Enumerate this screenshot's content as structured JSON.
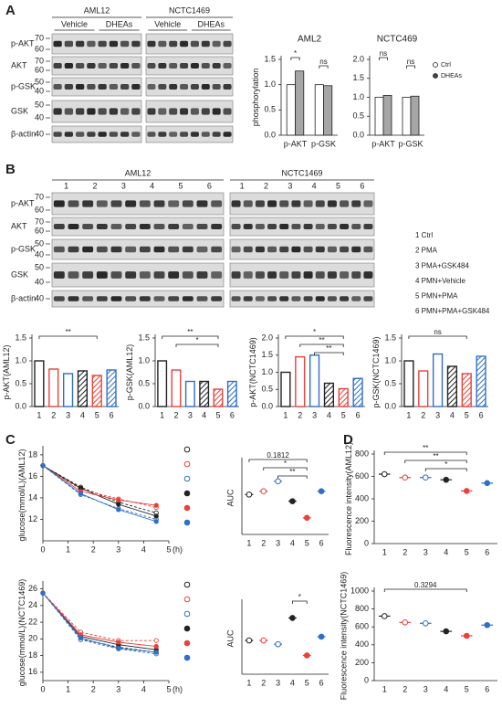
{
  "panel_labels": [
    "A",
    "B",
    "C",
    "D"
  ],
  "blot_a": {
    "groups": [
      "AML12",
      "NCTC1469"
    ],
    "conditions": [
      "Vehicle",
      "DHEAs",
      "Vehicle",
      "DHEAs"
    ],
    "rows": [
      {
        "label": "p-AKT",
        "markers": [
          70,
          60
        ]
      },
      {
        "label": "AKT",
        "markers": [
          70,
          60
        ]
      },
      {
        "label": "p-GSK",
        "markers": [
          50,
          40
        ]
      },
      {
        "label": "GSK",
        "markers": [
          50,
          40
        ]
      },
      {
        "label": "β-actin",
        "markers": [
          40
        ]
      }
    ]
  },
  "blot_b": {
    "groups": [
      "AML12",
      "NCTC1469"
    ],
    "lanes": [
      1,
      2,
      3,
      4,
      5,
      6
    ],
    "rows": [
      {
        "label": "p-AKT",
        "markers": [
          70,
          60
        ]
      },
      {
        "label": "AKT",
        "markers": [
          70,
          60
        ]
      },
      {
        "label": "p-GSK",
        "markers": [
          50,
          40
        ]
      },
      {
        "label": "GSK",
        "markers": [
          50,
          40
        ]
      },
      {
        "label": "β-actin",
        "markers": [
          40
        ]
      }
    ],
    "legend": [
      "1 Ctrl",
      "2 PMA",
      "3 PMA+GSK484",
      "4 PMN+Vehicle",
      "5 PMN+PMA",
      "6 PMN+PMA+GSK484"
    ]
  },
  "chart_data": [
    {
      "type": "bar",
      "title": "AML2",
      "ylabel": "phosphorylation",
      "categories": [
        "p-AKT",
        "p-GSK"
      ],
      "series": [
        {
          "color": "#ffffff",
          "values": [
            1.0,
            1.0
          ]
        },
        {
          "color": "#a6a6a6",
          "values": [
            1.27,
            0.98
          ]
        }
      ],
      "ylim": [
        0,
        1.5
      ],
      "yticks": [
        {
          "value": 0,
          "label": "0.0"
        },
        0.5,
        {
          "value": 1,
          "label": "1.0"
        },
        1.5
      ],
      "annotations": [
        {
          "text": "*",
          "category": "p-AKT"
        },
        {
          "text": "ns",
          "category": "p-GSK"
        }
      ]
    },
    {
      "type": "bar",
      "title": "NCTC469",
      "categories": [
        "p-AKT",
        "p-GSK"
      ],
      "legend": "right",
      "series": [
        {
          "name": "Ctrl",
          "color": "#ffffff",
          "values": [
            1.0,
            1.0
          ]
        },
        {
          "name": "DHEAs",
          "color": "#a6a6a6",
          "values": [
            1.05,
            1.03
          ]
        }
      ],
      "ylim": [
        0,
        2.0
      ],
      "yticks": [
        {
          "value": 0,
          "label": "0.0"
        },
        0.5,
        {
          "value": 1,
          "label": "1.0"
        },
        1.5,
        {
          "value": 2,
          "label": "2.0"
        }
      ],
      "annotations": [
        {
          "text": "ns",
          "category": "p-AKT"
        },
        {
          "text": "ns",
          "category": "p-GSK"
        }
      ]
    },
    {
      "type": "bar",
      "ylabel": "p-AKT(AML12)",
      "categories": [
        "1",
        "2",
        "3",
        "4",
        "5",
        "6"
      ],
      "values": [
        1.0,
        0.82,
        0.72,
        0.78,
        0.68,
        0.8
      ],
      "colors": [
        "#222222",
        "#e8423a",
        "#2f6fc8",
        "#222222",
        "#e8423a",
        "#2f6fc8"
      ],
      "hatched": [
        false,
        false,
        false,
        true,
        true,
        true
      ],
      "ylim": [
        0,
        1.5
      ],
      "yticks": [
        {
          "value": 0,
          "label": "0.0"
        },
        0.5,
        {
          "value": 1,
          "label": "1.0"
        },
        1.5
      ],
      "annotations": [
        {
          "text": "**",
          "between": [
            "1",
            "5"
          ]
        }
      ]
    },
    {
      "type": "bar",
      "ylabel": "p-GSK(AML12)",
      "categories": [
        "1",
        "2",
        "3",
        "4",
        "5",
        "6"
      ],
      "values": [
        1.0,
        0.8,
        0.55,
        0.55,
        0.38,
        0.55
      ],
      "colors": [
        "#222222",
        "#e8423a",
        "#2f6fc8",
        "#222222",
        "#e8423a",
        "#2f6fc8"
      ],
      "hatched": [
        false,
        false,
        false,
        true,
        true,
        true
      ],
      "ylim": [
        0,
        1.5
      ],
      "yticks": [
        {
          "value": 0,
          "label": "0.0"
        },
        0.5,
        {
          "value": 1,
          "label": "1.0"
        },
        1.5
      ],
      "annotations": [
        {
          "text": "**",
          "between": [
            "1",
            "5"
          ]
        },
        {
          "text": "*",
          "between": [
            "2",
            "5"
          ]
        }
      ]
    },
    {
      "type": "bar",
      "ylabel": "p-AKT(NCTC1469)",
      "categories": [
        "1",
        "2",
        "3",
        "4",
        "5",
        "6"
      ],
      "values": [
        1.0,
        1.45,
        1.5,
        0.68,
        0.52,
        0.82
      ],
      "colors": [
        "#222222",
        "#e8423a",
        "#2f6fc8",
        "#222222",
        "#e8423a",
        "#2f6fc8"
      ],
      "hatched": [
        false,
        false,
        false,
        true,
        true,
        true
      ],
      "ylim": [
        0,
        2.0
      ],
      "yticks": [
        {
          "value": 0,
          "label": "0.0"
        },
        0.5,
        {
          "value": 1,
          "label": "1.0"
        },
        1.5,
        {
          "value": 2,
          "label": "2.0"
        }
      ],
      "annotations": [
        {
          "text": "*",
          "between": [
            "1",
            "5"
          ]
        },
        {
          "text": "**",
          "between": [
            "2",
            "5"
          ]
        },
        {
          "text": "**",
          "between": [
            "3",
            "5"
          ]
        }
      ]
    },
    {
      "type": "bar",
      "ylabel": "p-GSK(NCTC1469)",
      "categories": [
        "1",
        "2",
        "3",
        "4",
        "5",
        "6"
      ],
      "values": [
        1.0,
        0.78,
        1.15,
        0.88,
        0.72,
        1.1
      ],
      "colors": [
        "#222222",
        "#e8423a",
        "#2f6fc8",
        "#222222",
        "#e8423a",
        "#2f6fc8"
      ],
      "hatched": [
        false,
        false,
        false,
        true,
        true,
        true
      ],
      "ylim": [
        0,
        1.5
      ],
      "yticks": [
        {
          "value": 0,
          "label": "0.0"
        },
        0.5,
        {
          "value": 1,
          "label": "1.0"
        },
        1.5
      ],
      "annotations": [
        {
          "text": "ns",
          "between": [
            "1",
            "5"
          ]
        }
      ]
    },
    {
      "type": "line",
      "ylabel": "glucose(mmol/L)(AML12)",
      "xlabel": "(h)",
      "legend": "right",
      "x": [
        0,
        1.5,
        3,
        4.5
      ],
      "xlim": [
        0,
        5
      ],
      "xticks": [
        0,
        1,
        2,
        3,
        4,
        5
      ],
      "ylim": [
        10,
        18.5
      ],
      "yticks": [
        12,
        14,
        16,
        18
      ],
      "series": [
        {
          "color": "#222222",
          "filled": false,
          "values": [
            17,
            15.0,
            13.6,
            12.6
          ]
        },
        {
          "color": "#e8423a",
          "filled": false,
          "values": [
            17,
            14.8,
            13.9,
            13.1
          ]
        },
        {
          "color": "#2f6fc8",
          "filled": false,
          "values": [
            17,
            14.3,
            13.0,
            12.0
          ]
        },
        {
          "color": "#222222",
          "filled": true,
          "values": [
            17,
            14.9,
            13.4,
            12.3
          ]
        },
        {
          "color": "#e8423a",
          "filled": true,
          "values": [
            17,
            14.6,
            13.8,
            13.3
          ]
        },
        {
          "color": "#2f6fc8",
          "filled": true,
          "values": [
            17,
            14.4,
            12.9,
            11.8
          ]
        }
      ]
    },
    {
      "type": "dot",
      "ylabel": "AUC",
      "categories": [
        "1",
        "2",
        "3",
        "4",
        "5",
        "6"
      ],
      "values": [
        12,
        12.5,
        14,
        11,
        8.5,
        12.5
      ],
      "colors": [
        "#222222",
        "#e8423a",
        "#2f6fc8",
        "#222222",
        "#e8423a",
        "#2f6fc8"
      ],
      "filled": [
        false,
        false,
        false,
        true,
        true,
        true
      ],
      "ylim": [
        6,
        17
      ],
      "annotations": [
        {
          "text": "0.1812",
          "between": [
            "1",
            "5"
          ]
        },
        {
          "text": "*",
          "between": [
            "2",
            "5"
          ]
        },
        {
          "text": "**",
          "between": [
            "3",
            "5"
          ]
        }
      ]
    },
    {
      "type": "line",
      "ylabel": "glucose(mmol/L)(NCTC1469)",
      "xlabel": "(h)",
      "legend": "right",
      "x": [
        0,
        1.5,
        3,
        4.5
      ],
      "xlim": [
        0,
        5
      ],
      "xticks": [
        0,
        1,
        2,
        3,
        4,
        5
      ],
      "ylim": [
        15,
        26.5
      ],
      "yticks": [
        16,
        18,
        20,
        22,
        24,
        26
      ],
      "series": [
        {
          "color": "#222222",
          "filled": false,
          "values": [
            25.5,
            20.0,
            19.0,
            18.4
          ]
        },
        {
          "color": "#e8423a",
          "filled": false,
          "values": [
            25.5,
            20.8,
            19.8,
            19.8
          ]
        },
        {
          "color": "#2f6fc8",
          "filled": false,
          "values": [
            25.5,
            19.9,
            18.8,
            18.2
          ]
        },
        {
          "color": "#222222",
          "filled": true,
          "values": [
            25.5,
            20.3,
            19.3,
            18.7
          ]
        },
        {
          "color": "#e8423a",
          "filled": true,
          "values": [
            25.5,
            20.5,
            19.6,
            19.1
          ]
        },
        {
          "color": "#2f6fc8",
          "filled": true,
          "values": [
            25.5,
            20.1,
            18.9,
            18.4
          ]
        }
      ]
    },
    {
      "type": "dot",
      "ylabel": "AUC",
      "categories": [
        "1",
        "2",
        "3",
        "4",
        "5",
        "6"
      ],
      "values": [
        37,
        37,
        36,
        43,
        33,
        38
      ],
      "colors": [
        "#222222",
        "#e8423a",
        "#2f6fc8",
        "#222222",
        "#e8423a",
        "#2f6fc8"
      ],
      "filled": [
        false,
        false,
        false,
        true,
        true,
        true
      ],
      "ylim": [
        28,
        47
      ],
      "annotations": [
        {
          "text": "*",
          "between": [
            "4",
            "5"
          ]
        }
      ]
    },
    {
      "type": "dot",
      "ylabel": "Fluorescence intensity(AML12)",
      "categories": [
        "1",
        "2",
        "3",
        "4",
        "5",
        "6"
      ],
      "values": [
        620,
        590,
        590,
        570,
        470,
        540
      ],
      "colors": [
        "#222222",
        "#e8423a",
        "#2f6fc8",
        "#222222",
        "#e8423a",
        "#2f6fc8"
      ],
      "filled": [
        false,
        false,
        false,
        true,
        true,
        true
      ],
      "ylim": [
        0,
        800
      ],
      "yticks": [
        0,
        200,
        400,
        600,
        800
      ],
      "annotations": [
        {
          "text": "**",
          "between": [
            "1",
            "5"
          ]
        },
        {
          "text": "**",
          "between": [
            "2",
            "5"
          ]
        },
        {
          "text": "*",
          "between": [
            "3",
            "5"
          ]
        }
      ]
    },
    {
      "type": "dot",
      "ylabel": "Fluorescence intensity(NCTC1469)",
      "categories": [
        "1",
        "2",
        "3",
        "4",
        "5",
        "6"
      ],
      "values": [
        720,
        650,
        640,
        550,
        500,
        620
      ],
      "colors": [
        "#222222",
        "#e8423a",
        "#2f6fc8",
        "#222222",
        "#e8423a",
        "#2f6fc8"
      ],
      "filled": [
        false,
        false,
        false,
        true,
        true,
        true
      ],
      "ylim": [
        0,
        1000
      ],
      "yticks": [
        0,
        200,
        400,
        600,
        800,
        1000
      ],
      "annotations": [
        {
          "text": "0.3294",
          "between": [
            "1",
            "5"
          ]
        }
      ]
    }
  ]
}
